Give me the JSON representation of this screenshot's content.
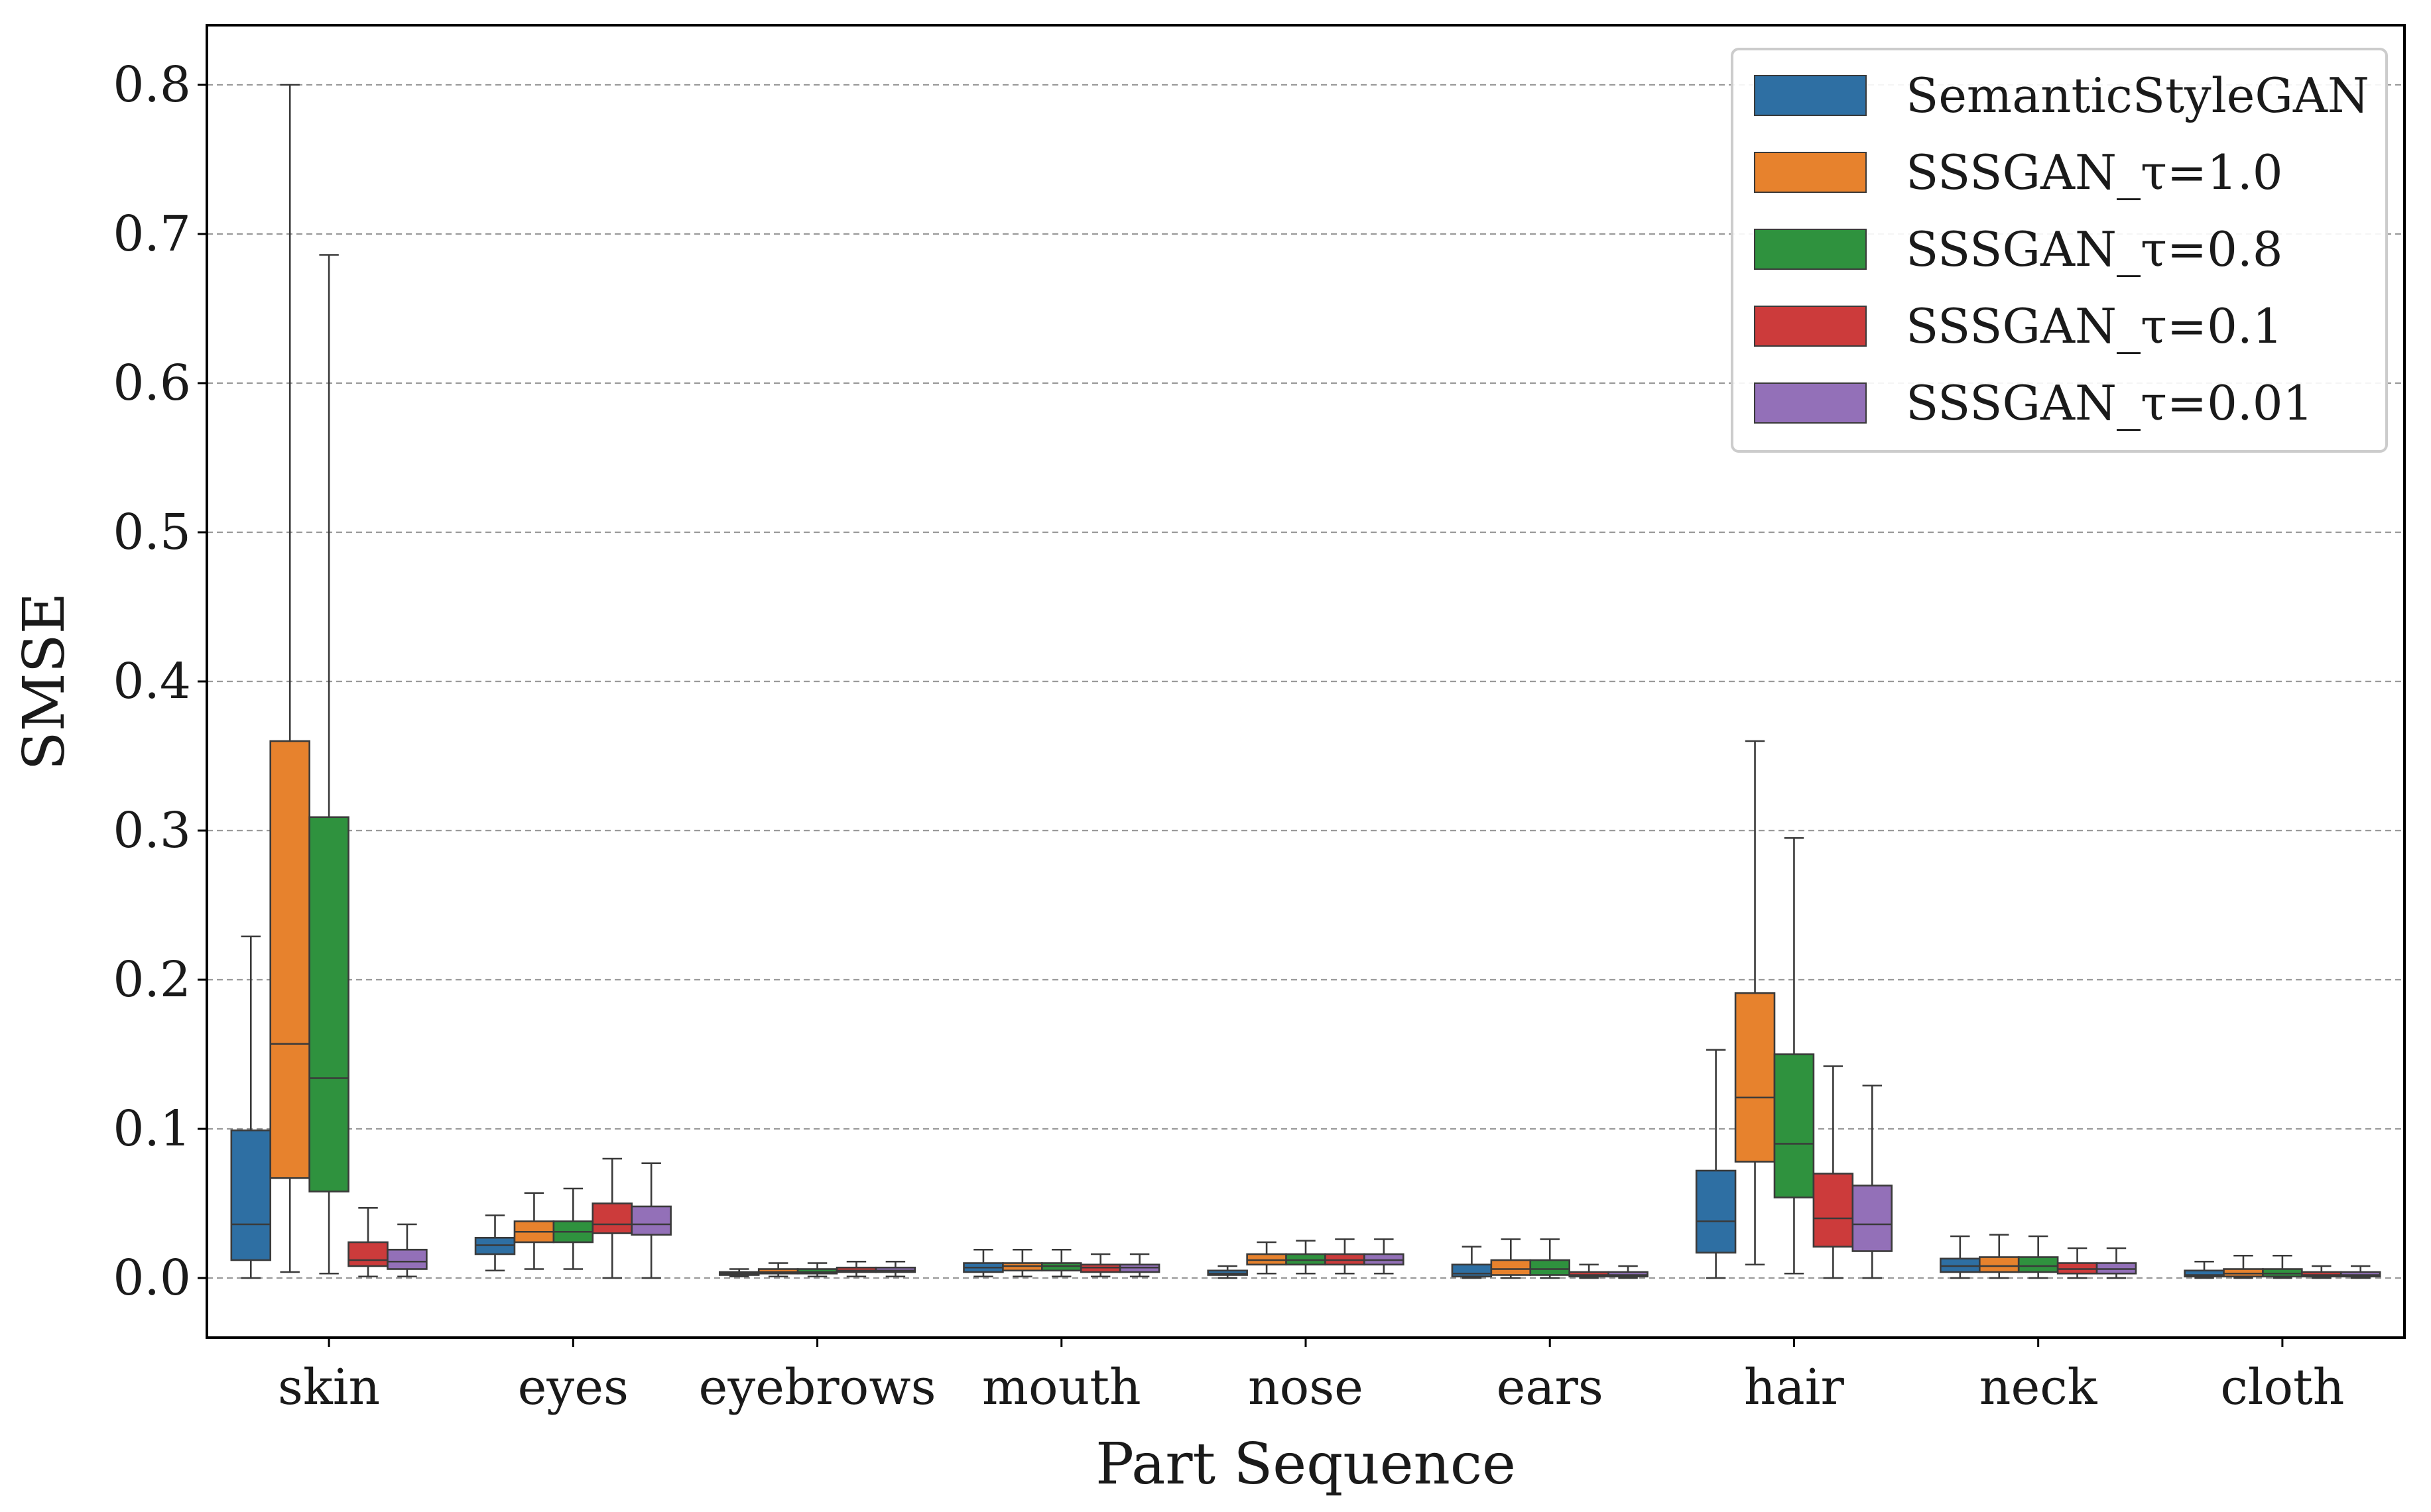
{
  "chart_data": {
    "type": "box",
    "title": "",
    "xlabel": "Part Sequence",
    "ylabel": "SMSE",
    "ylim": [
      -0.04,
      0.84
    ],
    "yticks": [
      0.0,
      0.1,
      0.2,
      0.3,
      0.4,
      0.5,
      0.6,
      0.7,
      0.8
    ],
    "ytick_labels": [
      "0.0",
      "0.1",
      "0.2",
      "0.3",
      "0.4",
      "0.5",
      "0.6",
      "0.7",
      "0.8"
    ],
    "grid": "horizontal dashed",
    "legend_position": "top-right",
    "categories": [
      "skin",
      "eyes",
      "eyebrows",
      "mouth",
      "nose",
      "ears",
      "hair",
      "neck",
      "cloth"
    ],
    "series": [
      {
        "name": "SemanticStyleGAN",
        "color": "#2e6fa3",
        "boxes": [
          {
            "whisker_low": 0.0,
            "q1": 0.012,
            "median": 0.036,
            "q3": 0.099,
            "whisker_high": 0.229
          },
          {
            "whisker_low": 0.005,
            "q1": 0.016,
            "median": 0.022,
            "q3": 0.027,
            "whisker_high": 0.042
          },
          {
            "whisker_low": 0.001,
            "q1": 0.002,
            "median": 0.003,
            "q3": 0.004,
            "whisker_high": 0.006
          },
          {
            "whisker_low": 0.001,
            "q1": 0.004,
            "median": 0.007,
            "q3": 0.01,
            "whisker_high": 0.019
          },
          {
            "whisker_low": 0.0,
            "q1": 0.002,
            "median": 0.003,
            "q3": 0.005,
            "whisker_high": 0.008
          },
          {
            "whisker_low": 0.0,
            "q1": 0.001,
            "median": 0.003,
            "q3": 0.009,
            "whisker_high": 0.021
          },
          {
            "whisker_low": 0.0,
            "q1": 0.017,
            "median": 0.038,
            "q3": 0.072,
            "whisker_high": 0.153
          },
          {
            "whisker_low": 0.0,
            "q1": 0.004,
            "median": 0.008,
            "q3": 0.013,
            "whisker_high": 0.028
          },
          {
            "whisker_low": 0.0,
            "q1": 0.001,
            "median": 0.002,
            "q3": 0.005,
            "whisker_high": 0.011
          }
        ]
      },
      {
        "name": "SSSGAN_τ=1.0",
        "color": "#e7822d",
        "boxes": [
          {
            "whisker_low": 0.004,
            "q1": 0.067,
            "median": 0.157,
            "q3": 0.36,
            "whisker_high": 0.8
          },
          {
            "whisker_low": 0.006,
            "q1": 0.024,
            "median": 0.031,
            "q3": 0.038,
            "whisker_high": 0.057
          },
          {
            "whisker_low": 0.001,
            "q1": 0.003,
            "median": 0.004,
            "q3": 0.006,
            "whisker_high": 0.01
          },
          {
            "whisker_low": 0.001,
            "q1": 0.005,
            "median": 0.008,
            "q3": 0.01,
            "whisker_high": 0.019
          },
          {
            "whisker_low": 0.003,
            "q1": 0.009,
            "median": 0.012,
            "q3": 0.016,
            "whisker_high": 0.024
          },
          {
            "whisker_low": 0.0,
            "q1": 0.002,
            "median": 0.006,
            "q3": 0.012,
            "whisker_high": 0.026
          },
          {
            "whisker_low": 0.009,
            "q1": 0.078,
            "median": 0.121,
            "q3": 0.191,
            "whisker_high": 0.36
          },
          {
            "whisker_low": 0.0,
            "q1": 0.004,
            "median": 0.008,
            "q3": 0.014,
            "whisker_high": 0.029
          },
          {
            "whisker_low": 0.0,
            "q1": 0.001,
            "median": 0.003,
            "q3": 0.006,
            "whisker_high": 0.015
          }
        ]
      },
      {
        "name": "SSSGAN_τ=0.8",
        "color": "#2f923e",
        "boxes": [
          {
            "whisker_low": 0.003,
            "q1": 0.058,
            "median": 0.134,
            "q3": 0.309,
            "whisker_high": 0.686
          },
          {
            "whisker_low": 0.006,
            "q1": 0.024,
            "median": 0.031,
            "q3": 0.038,
            "whisker_high": 0.06
          },
          {
            "whisker_low": 0.001,
            "q1": 0.003,
            "median": 0.004,
            "q3": 0.006,
            "whisker_high": 0.01
          },
          {
            "whisker_low": 0.001,
            "q1": 0.005,
            "median": 0.008,
            "q3": 0.01,
            "whisker_high": 0.019
          },
          {
            "whisker_low": 0.003,
            "q1": 0.009,
            "median": 0.012,
            "q3": 0.016,
            "whisker_high": 0.025
          },
          {
            "whisker_low": 0.0,
            "q1": 0.002,
            "median": 0.006,
            "q3": 0.012,
            "whisker_high": 0.026
          },
          {
            "whisker_low": 0.003,
            "q1": 0.054,
            "median": 0.09,
            "q3": 0.15,
            "whisker_high": 0.295
          },
          {
            "whisker_low": 0.0,
            "q1": 0.004,
            "median": 0.008,
            "q3": 0.014,
            "whisker_high": 0.028
          },
          {
            "whisker_low": 0.0,
            "q1": 0.001,
            "median": 0.003,
            "q3": 0.006,
            "whisker_high": 0.015
          }
        ]
      },
      {
        "name": "SSSGAN_τ=0.1",
        "color": "#cc3b3b",
        "boxes": [
          {
            "whisker_low": 0.001,
            "q1": 0.008,
            "median": 0.012,
            "q3": 0.024,
            "whisker_high": 0.047
          },
          {
            "whisker_low": 0.0,
            "q1": 0.03,
            "median": 0.036,
            "q3": 0.05,
            "whisker_high": 0.08
          },
          {
            "whisker_low": 0.001,
            "q1": 0.004,
            "median": 0.005,
            "q3": 0.007,
            "whisker_high": 0.011
          },
          {
            "whisker_low": 0.001,
            "q1": 0.004,
            "median": 0.007,
            "q3": 0.009,
            "whisker_high": 0.016
          },
          {
            "whisker_low": 0.003,
            "q1": 0.009,
            "median": 0.012,
            "q3": 0.016,
            "whisker_high": 0.026
          },
          {
            "whisker_low": 0.0,
            "q1": 0.001,
            "median": 0.002,
            "q3": 0.004,
            "whisker_high": 0.009
          },
          {
            "whisker_low": 0.0,
            "q1": 0.021,
            "median": 0.04,
            "q3": 0.07,
            "whisker_high": 0.142
          },
          {
            "whisker_low": 0.0,
            "q1": 0.003,
            "median": 0.006,
            "q3": 0.01,
            "whisker_high": 0.02
          },
          {
            "whisker_low": 0.0,
            "q1": 0.001,
            "median": 0.002,
            "q3": 0.004,
            "whisker_high": 0.008
          }
        ]
      },
      {
        "name": "SSSGAN_τ=0.01",
        "color": "#9370b8",
        "boxes": [
          {
            "whisker_low": 0.001,
            "q1": 0.006,
            "median": 0.011,
            "q3": 0.019,
            "whisker_high": 0.036
          },
          {
            "whisker_low": 0.0,
            "q1": 0.029,
            "median": 0.036,
            "q3": 0.048,
            "whisker_high": 0.077
          },
          {
            "whisker_low": 0.001,
            "q1": 0.004,
            "median": 0.005,
            "q3": 0.007,
            "whisker_high": 0.011
          },
          {
            "whisker_low": 0.001,
            "q1": 0.004,
            "median": 0.007,
            "q3": 0.009,
            "whisker_high": 0.016
          },
          {
            "whisker_low": 0.003,
            "q1": 0.009,
            "median": 0.012,
            "q3": 0.016,
            "whisker_high": 0.026
          },
          {
            "whisker_low": 0.0,
            "q1": 0.001,
            "median": 0.002,
            "q3": 0.004,
            "whisker_high": 0.008
          },
          {
            "whisker_low": 0.0,
            "q1": 0.018,
            "median": 0.036,
            "q3": 0.062,
            "whisker_high": 0.129
          },
          {
            "whisker_low": 0.0,
            "q1": 0.003,
            "median": 0.006,
            "q3": 0.01,
            "whisker_high": 0.02
          },
          {
            "whisker_low": 0.0,
            "q1": 0.001,
            "median": 0.002,
            "q3": 0.004,
            "whisker_high": 0.008
          }
        ]
      }
    ]
  }
}
